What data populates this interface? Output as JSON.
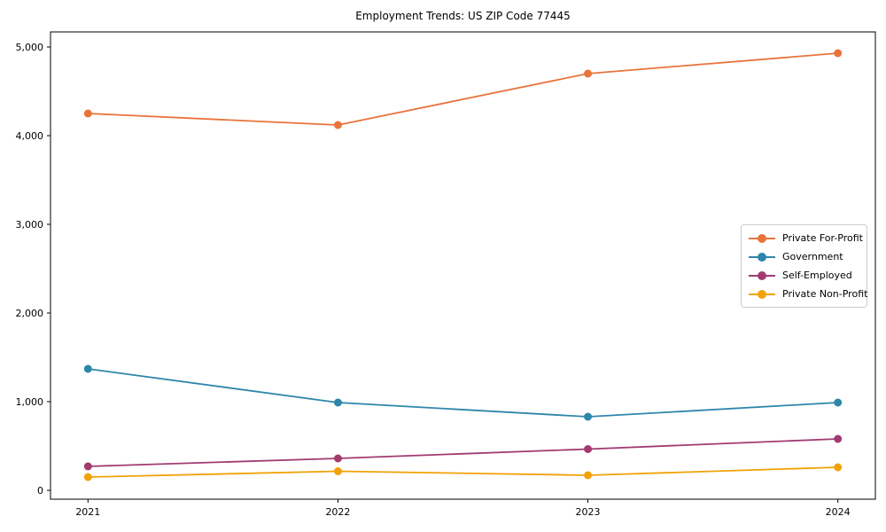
{
  "chart_data": {
    "type": "line",
    "title": "Employment Trends: US ZIP Code 77445",
    "x": [
      2021,
      2022,
      2023,
      2024
    ],
    "series": [
      {
        "name": "Private For-Profit",
        "color": "#E8743B",
        "values": [
          4250,
          4120,
          4700,
          4930
        ]
      },
      {
        "name": "Government",
        "color": "#2E86AB",
        "values": [
          1370,
          990,
          830,
          990
        ]
      },
      {
        "name": "Self-Employed",
        "color": "#A23B72",
        "values": [
          270,
          360,
          465,
          580
        ]
      },
      {
        "name": "Private Non-Profit",
        "color": "#F1A208",
        "values": [
          150,
          215,
          170,
          260
        ]
      }
    ],
    "xlim": [
      2020.85,
      2024.15
    ],
    "ylim": [
      -100,
      5170
    ],
    "yticks": [
      0,
      1000,
      2000,
      3000,
      4000,
      5000
    ],
    "ytick_labels": [
      "0",
      "1,000",
      "2,000",
      "3,000",
      "4,000",
      "5,000"
    ],
    "xtick_labels": [
      "2021",
      "2022",
      "2023",
      "2024"
    ],
    "legend_position": "right",
    "grid": false,
    "axis_color": "#000000",
    "background_color": "#ffffff"
  }
}
